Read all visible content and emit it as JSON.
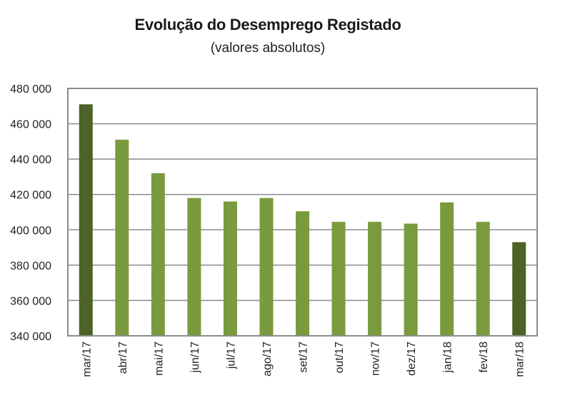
{
  "chart_data": {
    "type": "bar",
    "title": "Evolução do Desemprego Registado",
    "subtitle": "(valores absolutos)",
    "categories": [
      "mar/17",
      "abr/17",
      "mai/17",
      "jun/17",
      "jul/17",
      "ago/17",
      "set/17",
      "out/17",
      "nov/17",
      "dez/17",
      "jan/18",
      "fev/18",
      "mar/18"
    ],
    "values": [
      471000,
      451000,
      432000,
      418000,
      416000,
      418000,
      410500,
      404500,
      404500,
      403500,
      415500,
      404500,
      393000
    ],
    "highlight_indices": [
      0,
      12
    ],
    "ylim": [
      340000,
      480000
    ],
    "yticks": [
      340000,
      360000,
      380000,
      400000,
      420000,
      440000,
      460000,
      480000
    ],
    "ytick_labels": [
      "340 000",
      "360 000",
      "380 000",
      "400 000",
      "420 000",
      "440 000",
      "460 000",
      "480 000"
    ],
    "grid": true,
    "colors": {
      "bar": "#7a9a3e",
      "bar_highlight": "#4d6226",
      "grid": "#8c8c8c",
      "frame": "#8c8c8c"
    }
  }
}
